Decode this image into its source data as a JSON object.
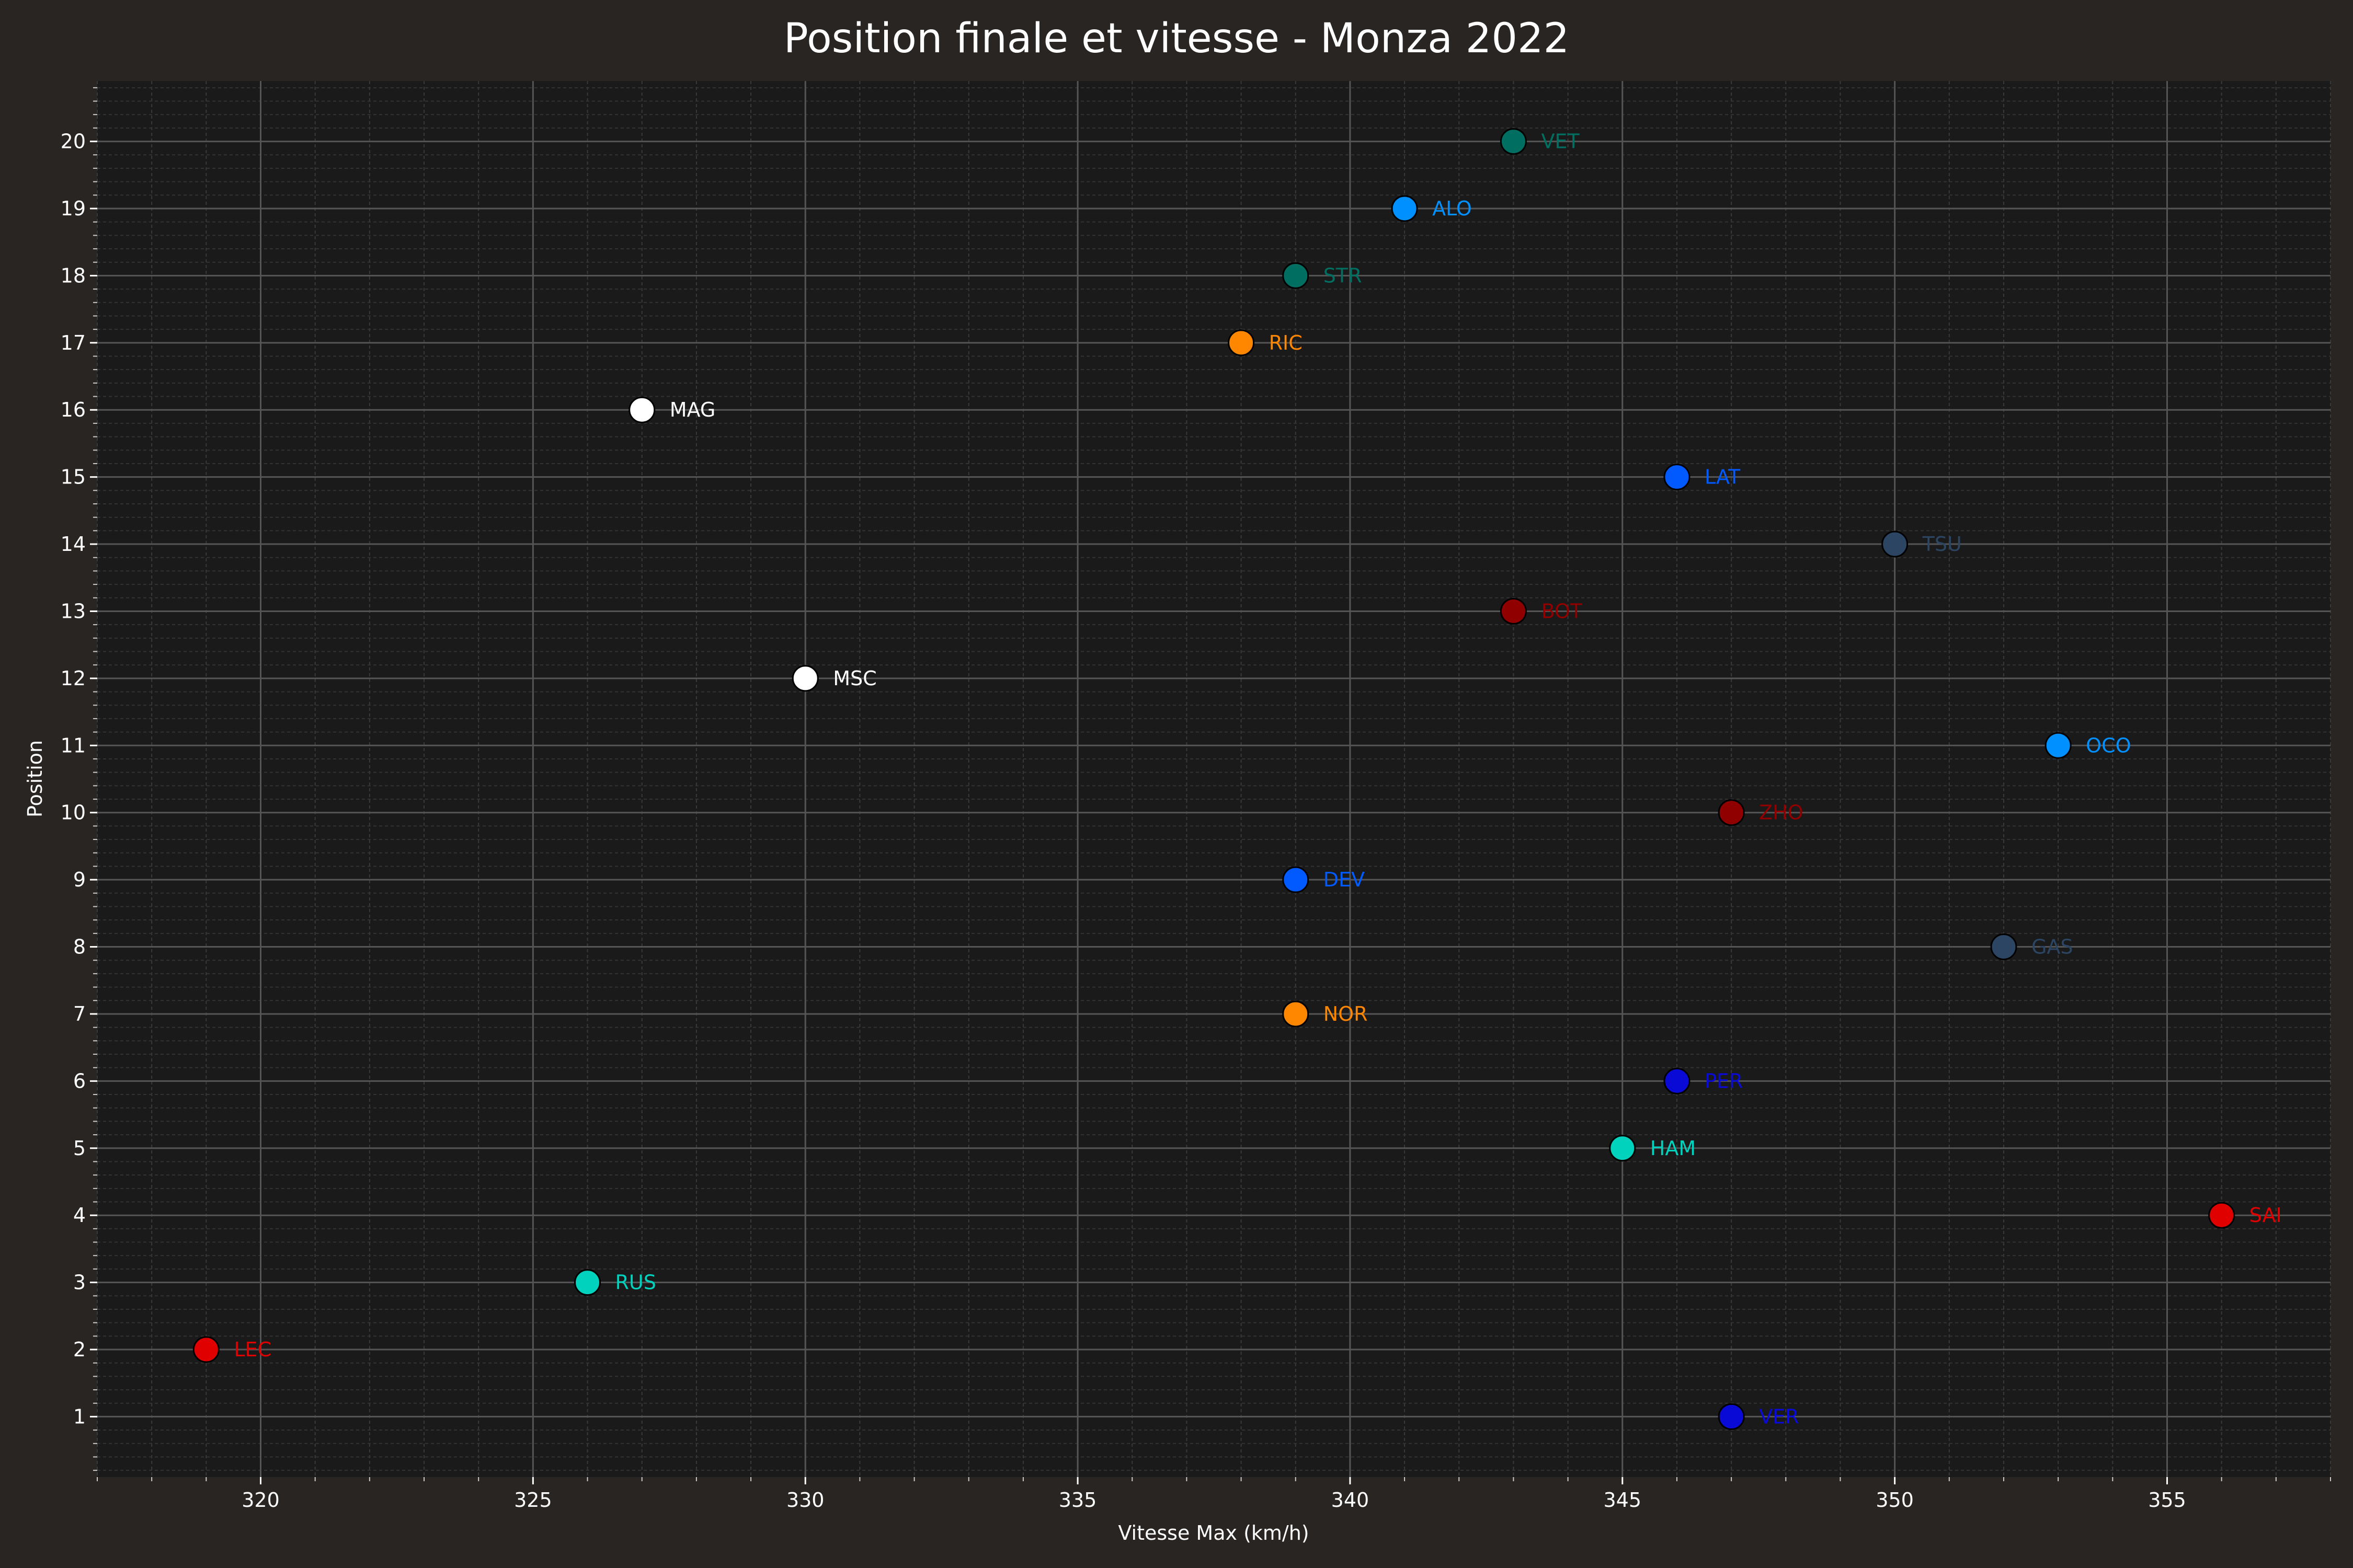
{
  "chart_data": {
    "type": "scatter",
    "title": "Position finale et vitesse - Monza 2022",
    "xlabel": "Vitesse Max (km/h)",
    "ylabel": "Position",
    "xlim": [
      317,
      358
    ],
    "ylim": [
      0.1,
      20.9
    ],
    "x_ticks": [
      320,
      325,
      330,
      335,
      340,
      345,
      350,
      355
    ],
    "y_ticks": [
      1,
      2,
      3,
      4,
      5,
      6,
      7,
      8,
      9,
      10,
      11,
      12,
      13,
      14,
      15,
      16,
      17,
      18,
      19,
      20
    ],
    "grid": true,
    "points": [
      {
        "label": "VER",
        "x": 347,
        "y": 1,
        "color": "#0a0ad6"
      },
      {
        "label": "LEC",
        "x": 319,
        "y": 2,
        "color": "#e00000"
      },
      {
        "label": "RUS",
        "x": 326,
        "y": 3,
        "color": "#00d2be"
      },
      {
        "label": "SAI",
        "x": 356,
        "y": 4,
        "color": "#e00000"
      },
      {
        "label": "HAM",
        "x": 345,
        "y": 5,
        "color": "#00d2be"
      },
      {
        "label": "PER",
        "x": 346,
        "y": 6,
        "color": "#0a0ad6"
      },
      {
        "label": "NOR",
        "x": 339,
        "y": 7,
        "color": "#ff8700"
      },
      {
        "label": "GAS",
        "x": 352,
        "y": 8,
        "color": "#2b4562"
      },
      {
        "label": "DEV",
        "x": 339,
        "y": 9,
        "color": "#005aff"
      },
      {
        "label": "ZHO",
        "x": 347,
        "y": 10,
        "color": "#900000"
      },
      {
        "label": "OCO",
        "x": 353,
        "y": 11,
        "color": "#0090ff"
      },
      {
        "label": "MSC",
        "x": 330,
        "y": 12,
        "color": "#ffffff"
      },
      {
        "label": "BOT",
        "x": 343,
        "y": 13,
        "color": "#900000"
      },
      {
        "label": "TSU",
        "x": 350,
        "y": 14,
        "color": "#2b4562"
      },
      {
        "label": "LAT",
        "x": 346,
        "y": 15,
        "color": "#005aff"
      },
      {
        "label": "MAG",
        "x": 327,
        "y": 16,
        "color": "#ffffff"
      },
      {
        "label": "RIC",
        "x": 338,
        "y": 17,
        "color": "#ff8700"
      },
      {
        "label": "STR",
        "x": 339,
        "y": 18,
        "color": "#006f62"
      },
      {
        "label": "ALO",
        "x": 341,
        "y": 19,
        "color": "#0090ff"
      },
      {
        "label": "VET",
        "x": 343,
        "y": 20,
        "color": "#006f62"
      }
    ]
  }
}
